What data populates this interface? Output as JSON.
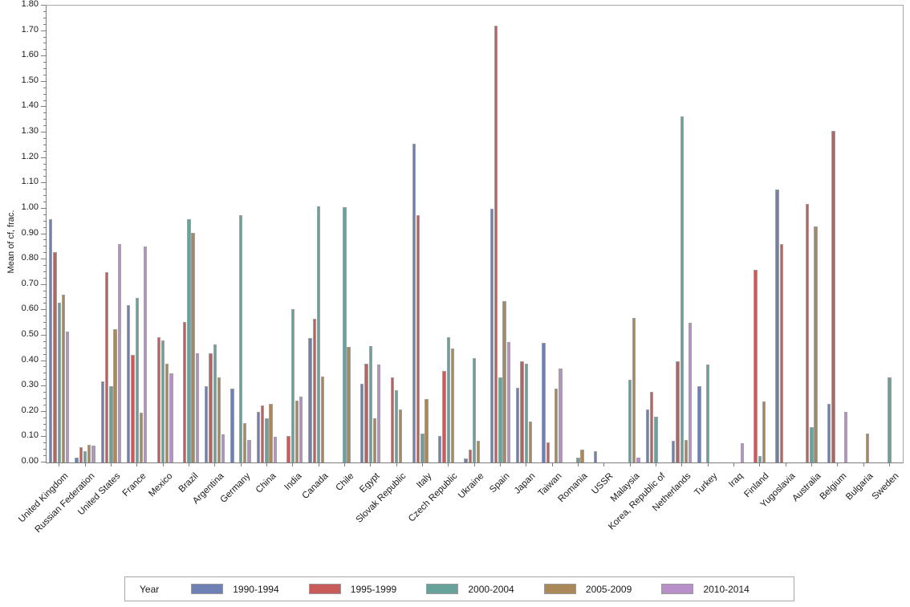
{
  "chart_data": {
    "type": "bar",
    "title": "",
    "xlabel": "",
    "ylabel": "Mean of cf, frac.",
    "ylim": [
      0,
      1.8
    ],
    "y_major_step": 0.1,
    "y_minor_step": 0.025,
    "y_tick_labels": [
      "0.00",
      "0.10",
      "0.20",
      "0.30",
      "0.40",
      "0.50",
      "0.60",
      "0.70",
      "0.80",
      "0.90",
      "1.00",
      "1.10",
      "1.20",
      "1.30",
      "1.40",
      "1.50",
      "1.60",
      "1.70",
      "1.80"
    ],
    "grid": "off",
    "legend_position": "bottom",
    "legend_title": "Year",
    "categories": [
      "United Kingdom",
      "Russian Federation",
      "United States",
      "France",
      "Mexico",
      "Brazil",
      "Argentina",
      "Germany",
      "China",
      "India",
      "Canada",
      "Chile",
      "Egypt",
      "Slovak Republic",
      "Italy",
      "Czech Republic",
      "Ukraine",
      "Spain",
      "Japan",
      "Taiwan",
      "Romania",
      "USSR",
      "Malaysia",
      "Korea, Republic of",
      "Netherlands",
      "Turkey",
      "Iraq",
      "Finland",
      "Yugoslavia",
      "Australia",
      "Belgium",
      "Bulgaria",
      "Sweden"
    ],
    "series": [
      {
        "name": "1990-1994",
        "color": "#6f80b4",
        "values": [
          0.96,
          0.02,
          0.32,
          0.62,
          null,
          null,
          0.3,
          0.29,
          0.2,
          null,
          0.49,
          null,
          0.31,
          null,
          1.255,
          0.105,
          0.015,
          1.0,
          0.295,
          0.47,
          null,
          0.045,
          null,
          0.21,
          0.085,
          0.3,
          null,
          null,
          1.075,
          null,
          0.23,
          null,
          null
        ]
      },
      {
        "name": "1995-1999",
        "color": "#c95b5b",
        "values": [
          0.83,
          0.06,
          0.75,
          0.425,
          0.495,
          0.555,
          0.43,
          null,
          0.225,
          0.105,
          0.565,
          null,
          0.39,
          0.335,
          0.975,
          0.36,
          0.05,
          1.72,
          0.4,
          0.08,
          null,
          null,
          null,
          0.28,
          0.4,
          null,
          null,
          0.76,
          0.86,
          1.02,
          1.305,
          null,
          null
        ]
      },
      {
        "name": "2000-2004",
        "color": "#67a29b",
        "values": [
          0.63,
          0.045,
          0.3,
          0.65,
          0.48,
          0.96,
          0.465,
          0.975,
          0.175,
          0.605,
          1.01,
          1.005,
          0.46,
          0.285,
          0.115,
          0.495,
          0.41,
          0.335,
          0.39,
          null,
          0.02,
          null,
          0.325,
          0.18,
          1.365,
          0.385,
          null,
          0.025,
          null,
          0.14,
          null,
          null,
          0.335
        ]
      },
      {
        "name": "2005-2009",
        "color": "#a9895a",
        "values": [
          0.66,
          0.07,
          0.525,
          0.195,
          0.39,
          0.905,
          0.335,
          0.155,
          0.23,
          0.245,
          0.34,
          0.455,
          0.175,
          0.21,
          0.25,
          0.45,
          0.085,
          0.635,
          0.16,
          0.29,
          0.05,
          null,
          0.57,
          null,
          0.09,
          null,
          null,
          0.24,
          null,
          0.93,
          null,
          0.115,
          null
        ]
      },
      {
        "name": "2010-2014",
        "color": "#b78fc9",
        "values": [
          0.515,
          0.065,
          0.86,
          0.85,
          0.35,
          0.43,
          0.11,
          0.09,
          0.1,
          0.26,
          null,
          null,
          0.385,
          null,
          null,
          null,
          null,
          0.475,
          null,
          0.37,
          null,
          null,
          0.02,
          null,
          0.55,
          null,
          0.075,
          null,
          null,
          null,
          0.2,
          null,
          null
        ]
      }
    ]
  }
}
